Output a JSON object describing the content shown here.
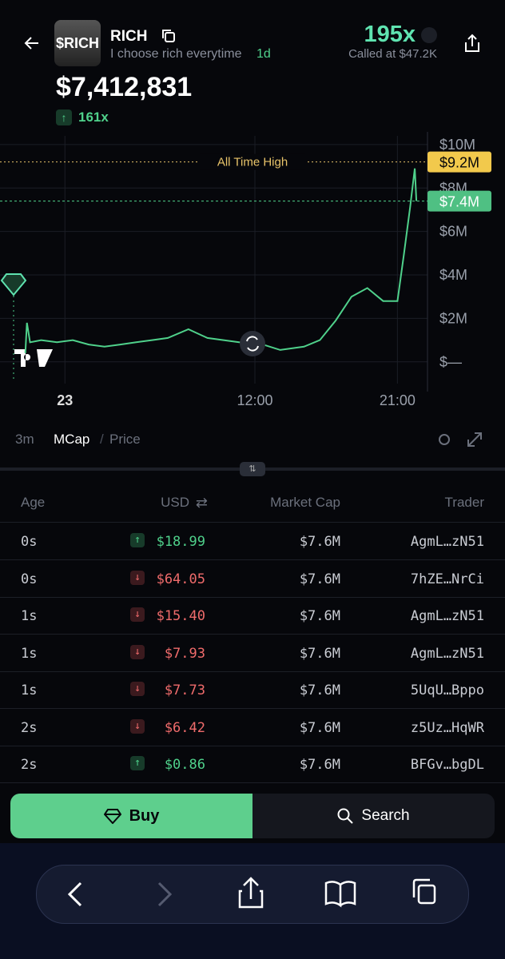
{
  "header": {
    "avatar_text": "$RICH",
    "token_name": "RICH",
    "tagline": "I choose rich everytime",
    "age": "1d",
    "multiplier": "195x",
    "called_at": "Called at $47.2K",
    "market_cap": "$7,412,831",
    "change": "161x"
  },
  "chart_data": {
    "type": "line",
    "color": "#4fd18b",
    "x": [
      -2.5,
      -2.4,
      -2.2,
      -1.5,
      -0.5,
      0.5,
      1.5,
      2.5,
      3.5,
      4.5,
      5.5,
      6.5,
      7.8,
      9,
      11,
      12.5,
      13.6,
      15.1,
      16.1,
      17.1,
      18.1,
      19.1,
      20.1,
      21,
      21.4,
      21.8,
      22.1,
      22.2
    ],
    "values": [
      400000,
      1800000,
      900000,
      1000000,
      900000,
      1000000,
      800000,
      700000,
      800000,
      900000,
      1000000,
      1100000,
      1500000,
      1100000,
      900000,
      800000,
      550000,
      700000,
      1000000,
      1900000,
      3000000,
      3400000,
      2800000,
      2800000,
      4900000,
      7100000,
      8900000,
      7400000
    ],
    "xlim": [
      -4.1,
      22.9
    ],
    "ylim": [
      -1000000,
      10400000
    ],
    "xticks": [
      {
        "value": 0,
        "label": "23"
      },
      {
        "value": 12,
        "label": "12:00"
      },
      {
        "value": 21,
        "label": "21:00"
      }
    ],
    "yticks": [
      {
        "value": 0,
        "label": "$—"
      },
      {
        "value": 2000000,
        "label": "$2M"
      },
      {
        "value": 4000000,
        "label": "$4M"
      },
      {
        "value": 6000000,
        "label": "$6M"
      },
      {
        "value": 8000000,
        "label": "$8M"
      },
      {
        "value": 10000000,
        "label": "$10M"
      }
    ],
    "grid": true,
    "ath": {
      "text": "All Time High",
      "value": 9200000,
      "label": "$9.2M"
    },
    "current": {
      "value": 7400000,
      "label": "$7.4M"
    }
  },
  "chart_tabs": {
    "interval": "3m",
    "mcap": "MCap",
    "separator": "/",
    "price": "Price"
  },
  "table": {
    "headers": [
      "Age",
      "USD",
      "Market Cap",
      "Trader"
    ],
    "rows": [
      [
        "0s",
        "$18.99",
        "$7.6M",
        "AgmL…zN51"
      ],
      [
        "0s",
        "$64.05",
        "$7.6M",
        "7hZE…NrCi"
      ],
      [
        "1s",
        "$15.40",
        "$7.6M",
        "AgmL…zN51"
      ],
      [
        "1s",
        "$7.93",
        "$7.6M",
        "AgmL…zN51"
      ],
      [
        "1s",
        "$7.73",
        "$7.6M",
        "5UqU…Bppo"
      ],
      [
        "2s",
        "$6.42",
        "$7.6M",
        "z5Uz…HqWR"
      ],
      [
        "2s",
        "$0.86",
        "$7.6M",
        "BFGv…bgDL"
      ]
    ],
    "directions": [
      "up",
      "down",
      "down",
      "down",
      "down",
      "down",
      "up"
    ]
  },
  "buttons": {
    "buy": "Buy",
    "search": "Search"
  }
}
